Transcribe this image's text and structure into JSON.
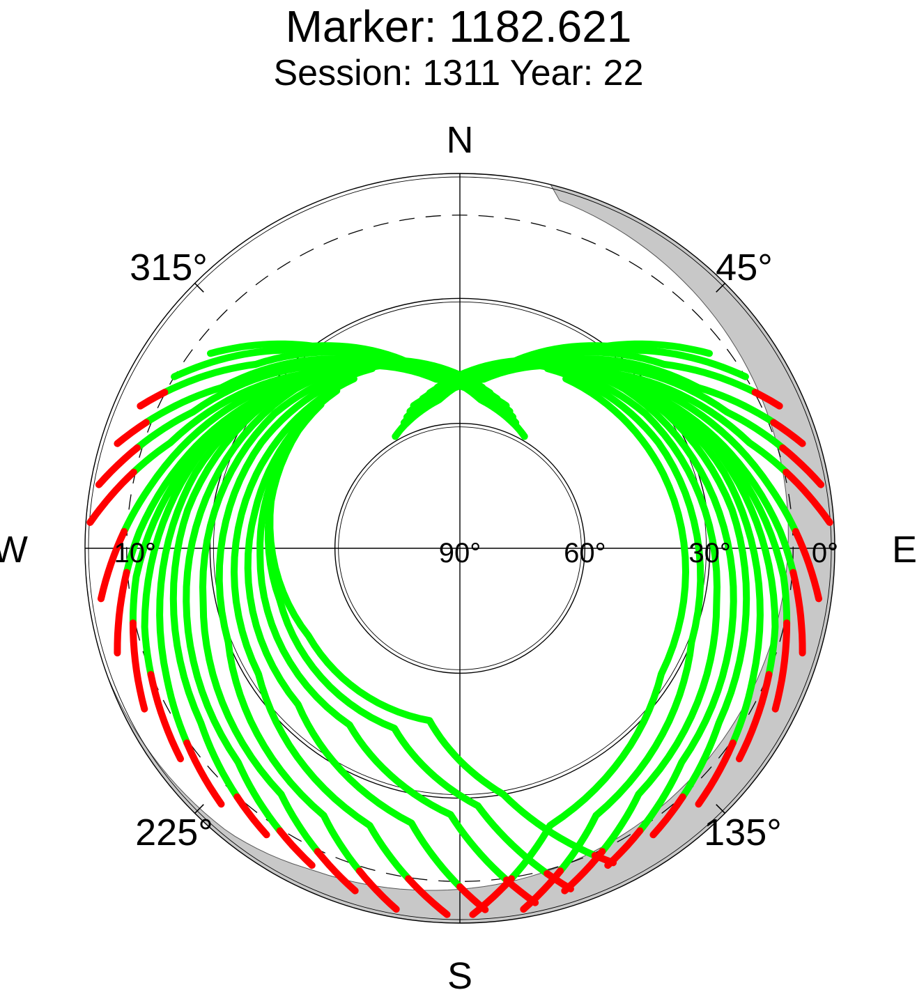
{
  "header": {
    "title": "Marker: 1182.621",
    "subtitle": "Session: 1311 Year: 22"
  },
  "chart_data": {
    "type": "scatter",
    "projection": "polar-skyplot",
    "compass": [
      "N",
      "E",
      "S",
      "W"
    ],
    "azimuth_labels": [
      {
        "azimuth": 45,
        "text": "45°"
      },
      {
        "azimuth": 135,
        "text": "135°"
      },
      {
        "azimuth": 225,
        "text": "225°"
      },
      {
        "azimuth": 315,
        "text": "315°"
      }
    ],
    "elevation_labels": [
      {
        "elevation": 0,
        "text": "0°"
      },
      {
        "elevation": 30,
        "text": "30°"
      },
      {
        "elevation": 60,
        "text": "60°"
      },
      {
        "elevation": 90,
        "text": "90°"
      },
      {
        "elevation": 10,
        "text": "10°"
      }
    ],
    "elevation_rings": [
      0,
      30,
      60
    ],
    "cutoff_elevation": 10,
    "grid": true,
    "colors": {
      "above_cutoff": "#00ff00",
      "below_cutoff": "#ff0000",
      "horizon_mask": "#c8c8c8"
    },
    "north_hole": {
      "azimuth": 0,
      "elevation": 49
    },
    "tracks": [
      {
        "az": [
          301,
          318,
          342,
          8,
          26
        ],
        "el": [
          10,
          26,
          43,
          54,
          58
        ]
      },
      {
        "az": [
          308,
          324,
          348,
          14,
          30
        ],
        "el": [
          14,
          30,
          46,
          55,
          59
        ]
      },
      {
        "az": [
          294,
          312,
          338,
          4,
          24
        ],
        "el": [
          6,
          24,
          41,
          52,
          57
        ]
      },
      {
        "az": [
          287,
          304,
          332,
          0,
          22
        ],
        "el": [
          4,
          21,
          39,
          51,
          56
        ]
      },
      {
        "az": [
          280,
          297,
          326,
          356,
          20
        ],
        "el": [
          2,
          18,
          37,
          50,
          55
        ]
      },
      {
        "az": [
          274,
          290,
          320,
          352,
          18
        ],
        "el": [
          1,
          16,
          35,
          49,
          54
        ]
      },
      {
        "az": [
          262,
          281,
          312,
          346,
          14
        ],
        "el": [
          3,
          14,
          31,
          46,
          53
        ]
      },
      {
        "az": [
          253,
          273,
          305,
          342,
          11
        ],
        "el": [
          4,
          13,
          29,
          44,
          52
        ]
      },
      {
        "az": [
          243,
          265,
          300,
          338,
          8
        ],
        "el": [
          5,
          12,
          27,
          42,
          51
        ]
      },
      {
        "az": [
          233,
          256,
          294,
          334,
          5
        ],
        "el": [
          6,
          12,
          25,
          40,
          50
        ]
      },
      {
        "az": [
          223,
          246,
          286,
          328,
          358
        ],
        "el": [
          6,
          13,
          24,
          38,
          48
        ]
      },
      {
        "az": [
          214,
          236,
          278,
          322,
          352
        ],
        "el": [
          7,
          15,
          24,
          36,
          46
        ]
      },
      {
        "az": [
          205,
          226,
          268,
          314,
          346
        ],
        "el": [
          6,
          16,
          25,
          35,
          44
        ]
      },
      {
        "az": [
          197,
          216,
          258,
          306,
          340
        ],
        "el": [
          4,
          17,
          27,
          35,
          43
        ]
      },
      {
        "az": [
          190,
          207,
          248,
          298,
          334
        ],
        "el": [
          2,
          18,
          30,
          36,
          42
        ]
      },
      {
        "az": [
          182,
          198,
          238,
          290,
          328
        ],
        "el": [
          2,
          20,
          33,
          38,
          42
        ]
      },
      {
        "az": [
          176,
          190,
          226,
          280,
          322
        ],
        "el": [
          3,
          23,
          36,
          40,
          42
        ]
      },
      {
        "az": [
          168,
          182,
          212,
          268,
          316
        ],
        "el": [
          3,
          26,
          40,
          42,
          42
        ]
      },
      {
        "az": [
          162,
          176,
          200,
          254,
          306
        ],
        "el": [
          4,
          28,
          44,
          45,
          42
        ]
      },
      {
        "az": [
          154,
          170,
          190,
          240,
          296
        ],
        "el": [
          6,
          30,
          48,
          48,
          42
        ]
      },
      {
        "az": [
          59,
          42,
          18,
          352,
          334
        ],
        "el": [
          10,
          26,
          43,
          54,
          58
        ]
      },
      {
        "az": [
          52,
          36,
          12,
          346,
          330
        ],
        "el": [
          14,
          30,
          46,
          55,
          59
        ]
      },
      {
        "az": [
          66,
          48,
          22,
          356,
          336
        ],
        "el": [
          6,
          24,
          41,
          52,
          57
        ]
      },
      {
        "az": [
          73,
          56,
          28,
          0,
          338
        ],
        "el": [
          4,
          21,
          39,
          51,
          56
        ]
      },
      {
        "az": [
          80,
          63,
          34,
          4,
          340
        ],
        "el": [
          2,
          18,
          37,
          50,
          55
        ]
      },
      {
        "az": [
          86,
          70,
          40,
          8,
          342
        ],
        "el": [
          1,
          16,
          35,
          49,
          54
        ]
      },
      {
        "az": [
          98,
          79,
          48,
          14,
          346
        ],
        "el": [
          3,
          14,
          31,
          46,
          53
        ]
      },
      {
        "az": [
          107,
          87,
          55,
          18,
          349
        ],
        "el": [
          4,
          13,
          29,
          44,
          52
        ]
      },
      {
        "az": [
          117,
          95,
          60,
          22,
          352
        ],
        "el": [
          5,
          12,
          27,
          42,
          51
        ]
      },
      {
        "az": [
          127,
          104,
          66,
          26,
          355
        ],
        "el": [
          6,
          12,
          25,
          40,
          50
        ]
      },
      {
        "az": [
          137,
          114,
          74,
          32,
          2
        ],
        "el": [
          6,
          13,
          24,
          38,
          48
        ]
      },
      {
        "az": [
          146,
          124,
          82,
          38,
          8
        ],
        "el": [
          7,
          15,
          24,
          36,
          46
        ]
      },
      {
        "az": [
          155,
          134,
          92,
          46,
          14
        ],
        "el": [
          6,
          16,
          25,
          35,
          44
        ]
      },
      {
        "az": [
          163,
          144,
          102,
          54,
          20
        ],
        "el": [
          4,
          17,
          27,
          35,
          43
        ]
      },
      {
        "az": [
          170,
          153,
          112,
          62,
          26
        ],
        "el": [
          2,
          18,
          30,
          36,
          42
        ]
      },
      {
        "az": [
          178,
          162,
          122,
          70,
          32
        ],
        "el": [
          2,
          20,
          33,
          38,
          42
        ]
      }
    ]
  }
}
